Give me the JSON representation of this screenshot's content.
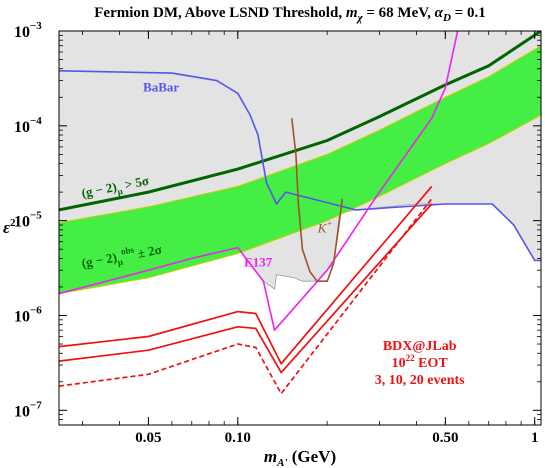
{
  "chart_data": {
    "type": "line",
    "title": "Fermion DM, Above LSND Threshold, m_χ = 68 MeV, α_D = 0.1",
    "title_parts": {
      "main": "Fermion DM, Above LSND Threshold, ",
      "mchi_symbol": "m",
      "mchi_sub": "χ",
      "mchi_value": " = 68 MeV, ",
      "alpha_symbol": "α",
      "alpha_sub": "D",
      "alpha_value": " = 0.1"
    },
    "xlabel": "m_A' (GeV)",
    "xlabel_parts": {
      "symbol": "m",
      "sub": "A'",
      "unit": " (GeV)"
    },
    "ylabel": "ε²",
    "ylabel_parts": {
      "symbol": "ε",
      "sup": "2"
    },
    "x_scale": "log",
    "y_scale": "log",
    "xlim": [
      0.025,
      1.05
    ],
    "ylim": [
      7e-08,
      0.001
    ],
    "x_ticks": [
      {
        "value": 0.05,
        "label": "0.05"
      },
      {
        "value": 0.1,
        "label": "0.10"
      },
      {
        "value": 0.5,
        "label": "0.50"
      },
      {
        "value": 1,
        "label": "1"
      }
    ],
    "y_ticks": [
      {
        "value": 1e-07,
        "mantissa": "10",
        "exponent": "−7"
      },
      {
        "value": 1e-06,
        "mantissa": "10",
        "exponent": "−6"
      },
      {
        "value": 1e-05,
        "mantissa": "10",
        "exponent": "−5"
      },
      {
        "value": 0.0001,
        "mantissa": "10",
        "exponent": "−4"
      },
      {
        "value": 0.001,
        "mantissa": "10",
        "exponent": "−3"
      }
    ],
    "excluded_region": {
      "fill": "#e3e3e3",
      "edge": "#9a9a9a",
      "points": [
        [
          0.025,
          0.001
        ],
        [
          1.05,
          0.001
        ],
        [
          1.05,
          3.8e-06
        ],
        [
          1.0,
          3.8e-06
        ],
        [
          0.85,
          9e-06
        ],
        [
          0.72,
          1.5e-05
        ],
        [
          0.5,
          1.5e-05
        ],
        [
          0.4,
          1.5e-05
        ],
        [
          0.25,
          1.3e-05
        ],
        [
          0.22,
          1.2e-05
        ],
        [
          0.21,
          3.5e-06
        ],
        [
          0.195,
          2.8e-06
        ],
        [
          0.185,
          2.3e-06
        ],
        [
          0.165,
          2.3e-06
        ],
        [
          0.155,
          2.5e-06
        ],
        [
          0.135,
          2.7e-06
        ],
        [
          0.133,
          1.9e-06
        ],
        [
          0.122,
          2.3e-06
        ],
        [
          0.11,
          3.5e-06
        ],
        [
          0.1,
          5.2e-06
        ],
        [
          0.07,
          4e-06
        ],
        [
          0.05,
          3e-06
        ],
        [
          0.025,
          1.7e-06
        ]
      ]
    },
    "g2_band": {
      "label": "(g − 2)_μ^obs ± 2σ",
      "label_parts": {
        "pre": "(g − 2)",
        "sub": "μ",
        "sup": "obs",
        "post": " ± 2σ"
      },
      "color": "#44ee44",
      "edge": "#cccc00",
      "upper": [
        [
          0.025,
          9.5e-06
        ],
        [
          0.05,
          1.4e-05
        ],
        [
          0.1,
          2.3e-05
        ],
        [
          0.2,
          5e-05
        ],
        [
          0.3,
          9e-05
        ],
        [
          0.5,
          0.0002
        ],
        [
          0.7,
          0.00033
        ],
        [
          1.05,
          0.0007
        ]
      ],
      "lower": [
        [
          0.025,
          1.7e-06
        ],
        [
          0.05,
          2.5e-06
        ],
        [
          0.1,
          4.5e-06
        ],
        [
          0.2,
          1e-05
        ],
        [
          0.3,
          1.8e-05
        ],
        [
          0.5,
          4e-05
        ],
        [
          0.7,
          6.5e-05
        ],
        [
          1.05,
          0.00013
        ]
      ]
    },
    "g2_5sigma": {
      "label": "(g − 2)_μ > 5σ",
      "label_parts": {
        "pre": "(g − 2)",
        "sub": "μ",
        "post": " > 5σ"
      },
      "color": "#006400",
      "points": [
        [
          0.025,
          1.3e-05
        ],
        [
          0.05,
          2e-05
        ],
        [
          0.1,
          3.5e-05
        ],
        [
          0.2,
          7e-05
        ],
        [
          0.3,
          0.000125
        ],
        [
          0.5,
          0.00027
        ],
        [
          0.7,
          0.00043
        ],
        [
          1.05,
          0.001
        ]
      ]
    },
    "series": [
      {
        "name": "BaBar",
        "color": "#5555ee",
        "points": [
          [
            0.025,
            0.00038
          ],
          [
            0.06,
            0.00036
          ],
          [
            0.085,
            0.0003
          ],
          [
            0.1,
            0.00022
          ],
          [
            0.11,
            0.00013
          ],
          [
            0.117,
            8e-05
          ],
          [
            0.125,
            2.5e-05
          ],
          [
            0.135,
            1.5e-05
          ],
          [
            0.145,
            2e-05
          ],
          [
            0.25,
            1.3e-05
          ],
          [
            0.5,
            1.5e-05
          ],
          [
            0.72,
            1.5e-05
          ],
          [
            0.85,
            9e-06
          ],
          [
            1.0,
            3.8e-06
          ],
          [
            1.05,
            3.8e-06
          ]
        ]
      },
      {
        "name": "E137",
        "color": "#ee22ee",
        "points": [
          [
            0.025,
            1.7e-06
          ],
          [
            0.05,
            3e-06
          ],
          [
            0.07,
            4e-06
          ],
          [
            0.1,
            5.2e-06
          ],
          [
            0.11,
            3.5e-06
          ],
          [
            0.122,
            2.3e-06
          ],
          [
            0.133,
            7e-07
          ],
          [
            0.2,
            3e-06
          ],
          [
            0.3,
            2e-05
          ],
          [
            0.45,
            0.00012
          ],
          [
            0.5,
            0.00025
          ],
          [
            0.55,
            0.001
          ]
        ]
      },
      {
        "name": "K⁺",
        "label_parts": {
          "base": "K",
          "sup": "+"
        },
        "color": "#a0522d",
        "points": [
          [
            0.152,
            0.00012
          ],
          [
            0.157,
            5e-05
          ],
          [
            0.16,
            1.5e-05
          ],
          [
            0.165,
            5e-06
          ],
          [
            0.175,
            2.9e-06
          ],
          [
            0.185,
            2.3e-06
          ],
          [
            0.2,
            2.3e-06
          ],
          [
            0.21,
            3.5e-06
          ],
          [
            0.22,
            1e-05
          ],
          [
            0.225,
            1.7e-05
          ]
        ]
      },
      {
        "name": "BDX@JLab 3 events",
        "color": "#ee1111",
        "dash": "none",
        "points": [
          [
            0.025,
            3.3e-07
          ],
          [
            0.05,
            4.3e-07
          ],
          [
            0.1,
            7.6e-07
          ],
          [
            0.115,
            7.3e-07
          ],
          [
            0.14,
            2.5e-07
          ],
          [
            0.45,
            1.5e-05
          ]
        ]
      },
      {
        "name": "BDX@JLab 10 events",
        "color": "#ee1111",
        "dash": "none",
        "points": [
          [
            0.025,
            4.7e-07
          ],
          [
            0.05,
            6e-07
          ],
          [
            0.1,
            1.1e-06
          ],
          [
            0.115,
            1.05e-06
          ],
          [
            0.14,
            3.1e-07
          ],
          [
            0.45,
            2.3e-05
          ]
        ]
      },
      {
        "name": "BDX@JLab 20 events",
        "color": "#ee1111",
        "dash": "5,3",
        "points": [
          [
            0.025,
            1.8e-07
          ],
          [
            0.05,
            2.4e-07
          ],
          [
            0.1,
            5e-07
          ],
          [
            0.115,
            4.6e-07
          ],
          [
            0.14,
            1.5e-07
          ],
          [
            0.45,
            1.7e-05
          ]
        ]
      }
    ],
    "annotations": {
      "babar": {
        "text": "BaBar",
        "color": "#5555ee",
        "at": [
          0.048,
          0.00023
        ]
      },
      "e137": {
        "text": "E137",
        "color": "#ee22ee",
        "at": [
          0.105,
          3.3e-06
        ]
      },
      "kplus": {
        "text": "K⁺",
        "color": "#a0522d",
        "at": [
          0.186,
          7.5e-06
        ]
      },
      "g2_5sigma": {
        "text": "(g − 2)_μ > 5σ",
        "color": "#006400",
        "at": [
          0.03,
          1.75e-05
        ],
        "rotate": -11
      },
      "g2_band": {
        "text": "(g − 2)_μ^obs ± 2σ",
        "color": "#006400",
        "at": [
          0.03,
          3.2e-06
        ],
        "rotate": -10
      },
      "bdx": {
        "color": "#ee1111",
        "line1": "BDX@JLab",
        "line2_base": "10",
        "line2_sup": "22",
        "line2_rest": " EOT",
        "line3": "3, 10, 20 events",
        "at": [
          0.41,
          4.3e-07
        ]
      }
    }
  }
}
